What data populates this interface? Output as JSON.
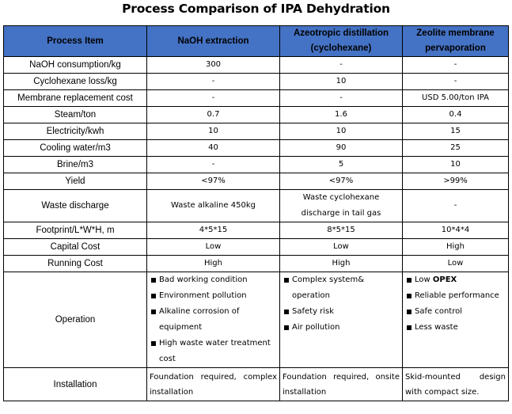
{
  "title": "Process Comparison of IPA Dehydration",
  "headers": [
    "Process Item",
    "NaOH extraction",
    "Azeotropic distillation (cyclohexane)",
    "Zeolite membrane pervaporation"
  ],
  "rows": [
    {
      "label": "NaOH consumption/kg",
      "values": [
        "300",
        "-",
        "-"
      ]
    },
    {
      "label": "Cyclohexane loss/kg",
      "values": [
        "-",
        "10",
        "-"
      ]
    },
    {
      "label": "Membrane replacement cost",
      "values": [
        "-",
        "-",
        "USD 5.00/ton IPA"
      ]
    },
    {
      "label": "Steam/ton",
      "values": [
        "0.7",
        "1.6",
        "0.4"
      ]
    },
    {
      "label": "Electricity/kwh",
      "values": [
        "10",
        "10",
        "15"
      ]
    },
    {
      "label": "Cooling water/m3",
      "values": [
        "40",
        "90",
        "25"
      ]
    },
    {
      "label": "Brine/m3",
      "values": [
        "-",
        "5",
        "10"
      ]
    },
    {
      "label": "Yield",
      "values": [
        "<97%",
        "<97%",
        ">99%"
      ]
    },
    {
      "label": "Waste discharge",
      "values": [
        "Waste alkaline 450kg",
        "Waste cyclohexane discharge in tail gas",
        "-"
      ]
    },
    {
      "label": "Footprint/L*W*H, m",
      "values": [
        "4*5*15",
        "8*5*15",
        "10*4*4"
      ]
    },
    {
      "label": "Capital Cost",
      "values": [
        "Low",
        "Low",
        "High"
      ]
    },
    {
      "label": "Running Cost",
      "values": [
        "High",
        "High",
        "Low"
      ]
    }
  ],
  "operation": {
    "label": "Operation",
    "naoh": [
      "Bad working condition",
      "Environment pollution",
      "Alkaline corrosion of equipment",
      "High waste water treatment cost"
    ],
    "azeo": [
      "Complex system& operation",
      "Safety risk",
      "Air pollution"
    ],
    "zeolite_first_prefix": "Low",
    "zeolite_first_bold": "OPEX",
    "zeolite": [
      "Reliable performance",
      "Safe control",
      "Less waste"
    ]
  },
  "installation": {
    "label": "Installation",
    "values": [
      "Foundation required, complex installation",
      "Foundation required, onsite installation",
      "Skid-mounted design with compact size."
    ]
  },
  "colors": {
    "header_bg": "#4472c4",
    "border": "#000000"
  }
}
